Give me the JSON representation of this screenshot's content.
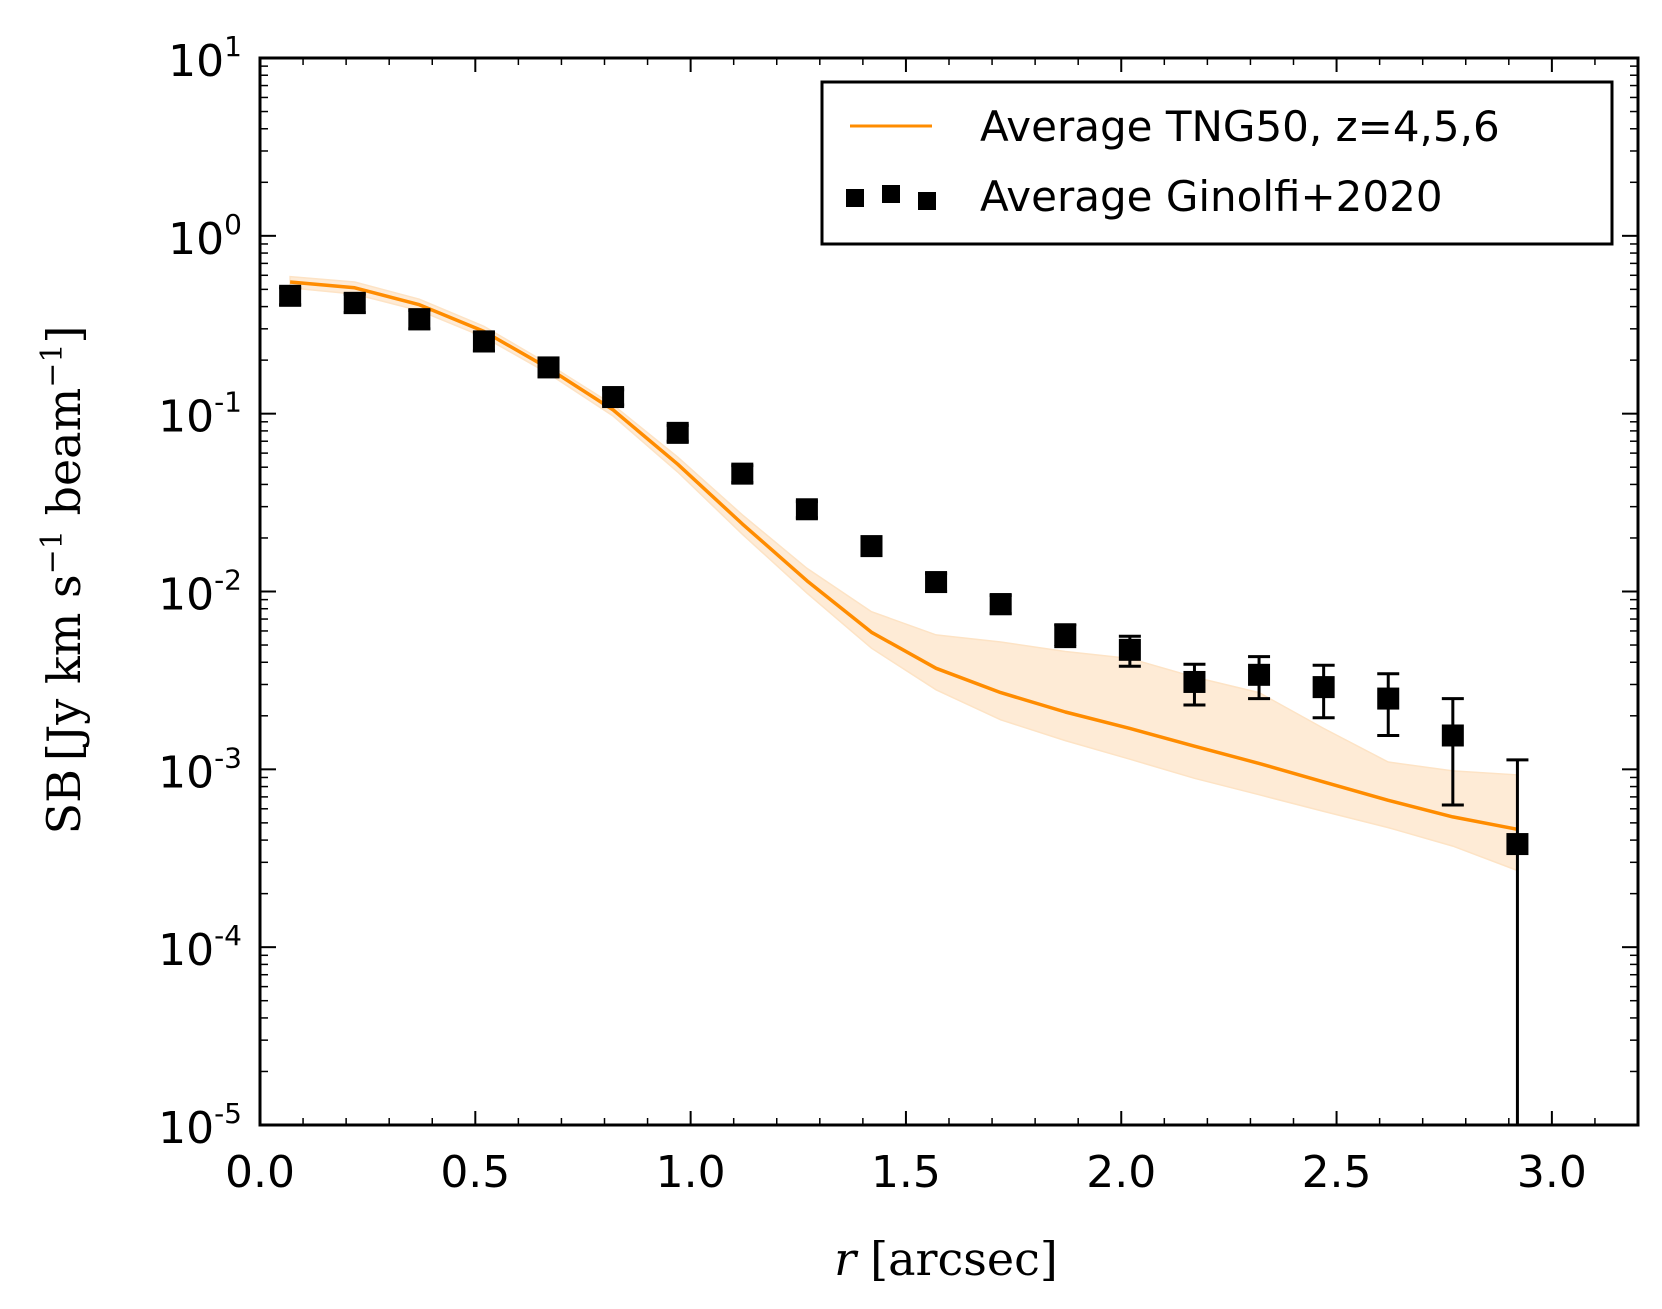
{
  "chart_data": {
    "type": "line",
    "xlabel_var": "r",
    "xlabel_unit": "[arcsec]",
    "ylabel_prefix": "SB",
    "ylabel_unit": "[Jy km s",
    "ylabel_exp1": "−1",
    "ylabel_mid": " beam",
    "ylabel_exp2": "−1",
    "ylabel_close": "]",
    "yscale": "log",
    "xlim": [
      0.0,
      3.2
    ],
    "ylim": [
      1e-05,
      10
    ],
    "x_ticks": [
      0.0,
      0.5,
      1.0,
      1.5,
      2.0,
      2.5,
      3.0
    ],
    "x_tick_labels": [
      "0.0",
      "0.5",
      "1.0",
      "1.5",
      "2.0",
      "2.5",
      "3.0"
    ],
    "y_ticks": [
      1e-05,
      0.0001,
      0.001,
      0.01,
      0.1,
      1,
      10
    ],
    "y_tick_labels": [
      {
        "base": "10",
        "exp": "-5"
      },
      {
        "base": "10",
        "exp": "-4"
      },
      {
        "base": "10",
        "exp": "-3"
      },
      {
        "base": "10",
        "exp": "-2"
      },
      {
        "base": "10",
        "exp": "-1"
      },
      {
        "base": "10",
        "exp": "0"
      },
      {
        "base": "10",
        "exp": "1"
      }
    ],
    "legend_position": "top-right",
    "series": [
      {
        "name": "Average TNG50, z=4,5,6",
        "kind": "line",
        "color": "#ff8c00",
        "band_color": "#fde3c5",
        "x": [
          0.07,
          0.22,
          0.37,
          0.52,
          0.67,
          0.82,
          0.97,
          1.12,
          1.27,
          1.42,
          1.57,
          1.72,
          1.87,
          2.02,
          2.17,
          2.32,
          2.47,
          2.62,
          2.77,
          2.92
        ],
        "y": [
          0.55,
          0.51,
          0.41,
          0.29,
          0.18,
          0.105,
          0.052,
          0.024,
          0.0115,
          0.0059,
          0.0037,
          0.0027,
          0.0021,
          0.0017,
          0.00135,
          0.00108,
          0.00085,
          0.00067,
          0.00054,
          0.00046
        ],
        "y_low": [
          0.51,
          0.47,
          0.38,
          0.27,
          0.168,
          0.097,
          0.047,
          0.021,
          0.0098,
          0.0048,
          0.0028,
          0.0019,
          0.00145,
          0.00114,
          0.00089,
          0.00072,
          0.00058,
          0.00047,
          0.00037,
          0.00027
        ],
        "y_high": [
          0.59,
          0.55,
          0.44,
          0.31,
          0.19,
          0.112,
          0.057,
          0.027,
          0.0135,
          0.0077,
          0.0057,
          0.0052,
          0.0046,
          0.0042,
          0.0033,
          0.0027,
          0.0017,
          0.0011,
          0.00098,
          0.00093
        ]
      },
      {
        "name": "Average Ginolfi+2020",
        "kind": "errorbar",
        "color": "#000000",
        "x": [
          0.07,
          0.22,
          0.37,
          0.52,
          0.67,
          0.82,
          0.97,
          1.12,
          1.27,
          1.42,
          1.57,
          1.72,
          1.87,
          2.02,
          2.17,
          2.32,
          2.47,
          2.62,
          2.77,
          2.92
        ],
        "y": [
          0.46,
          0.42,
          0.34,
          0.255,
          0.182,
          0.124,
          0.078,
          0.046,
          0.029,
          0.018,
          0.0113,
          0.0085,
          0.0057,
          0.0047,
          0.0031,
          0.0034,
          0.0029,
          0.0025,
          0.00155,
          0.00038
        ],
        "y_err_low": [
          0.05,
          0.05,
          0.04,
          0.03,
          0.02,
          0.012,
          0.008,
          0.005,
          0.003,
          0.002,
          0.0013,
          0.001,
          0.0008,
          0.0009,
          0.0008,
          0.0009,
          0.00095,
          0.00095,
          0.00092,
          0.00037
        ],
        "y_err_high": [
          0.05,
          0.05,
          0.04,
          0.03,
          0.02,
          0.012,
          0.008,
          0.005,
          0.003,
          0.002,
          0.0013,
          0.001,
          0.0008,
          0.0009,
          0.0008,
          0.0009,
          0.00095,
          0.00095,
          0.00095,
          0.00075
        ]
      }
    ]
  }
}
